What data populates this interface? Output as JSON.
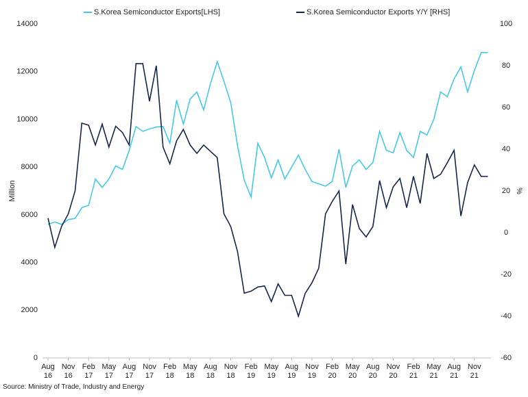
{
  "chart_data": {
    "type": "line",
    "y_label": "Million",
    "y2_label": "%",
    "source": "Source: Ministry of Trade, Industry and Energy",
    "categories": [
      "Aug 16",
      null,
      null,
      "Nov 16",
      null,
      null,
      "Feb 17",
      null,
      null,
      "May 17",
      null,
      null,
      "Aug 17",
      null,
      null,
      "Nov 17",
      null,
      null,
      "Feb 18",
      null,
      null,
      "May 18",
      null,
      null,
      "Aug 18",
      null,
      null,
      "Nov 18",
      null,
      null,
      "Feb 19",
      null,
      null,
      "May 19",
      null,
      null,
      "Aug 19",
      null,
      null,
      "Nov 19",
      null,
      null,
      "Feb 20",
      null,
      null,
      "May 20",
      null,
      null,
      "Aug 20",
      null,
      null,
      "Nov 20",
      null,
      null,
      "Feb 21",
      null,
      null,
      "May 21",
      null,
      null,
      "Aug 21",
      null,
      null,
      "Nov 21",
      null,
      null
    ],
    "series": [
      {
        "name": "S.Korea Semiconductor Exports[LHS]",
        "color": "#45c8e8",
        "axis": "y",
        "values": [
          5600,
          5700,
          5600,
          5800,
          5850,
          6300,
          6400,
          7500,
          7150,
          7500,
          8050,
          7900,
          8700,
          9700,
          9500,
          9600,
          9680,
          9700,
          9000,
          10800,
          9800,
          10850,
          11150,
          10400,
          11500,
          12420,
          11600,
          10700,
          8900,
          7450,
          6750,
          9000,
          8400,
          7550,
          8300,
          7500,
          8000,
          8500,
          7900,
          7400,
          7300,
          7200,
          7400,
          8750,
          7150,
          8050,
          8300,
          7900,
          8200,
          9500,
          8700,
          8600,
          9450,
          8700,
          8400,
          9500,
          9350,
          10000,
          11150,
          10950,
          11700,
          12200,
          11150,
          12050,
          12800,
          12800
        ]
      },
      {
        "name": "S.Korea Semiconductor Exports Y/Y [RHS]",
        "color": "#14244a",
        "axis": "y2",
        "values": [
          7,
          -7,
          3,
          9,
          20,
          52.5,
          51.5,
          42,
          52,
          41,
          51,
          48,
          42,
          81,
          81,
          63,
          80,
          41,
          33,
          44,
          49.5,
          42,
          38,
          42,
          39,
          36,
          9,
          3,
          -9,
          -29,
          -28,
          -26,
          -25.5,
          -33,
          -24.5,
          -30,
          -30,
          -40,
          -29,
          -24,
          -17,
          9,
          15,
          20,
          -15,
          13.5,
          2,
          -2,
          3,
          25,
          12,
          22,
          26,
          12,
          27,
          14,
          38,
          26,
          28,
          33.5,
          39.5,
          8,
          24,
          32.5,
          27,
          27
        ]
      }
    ],
    "ylim": [
      0,
      14000
    ],
    "yticks": [
      0,
      2000,
      4000,
      6000,
      8000,
      10000,
      12000,
      14000
    ],
    "y2lim": [
      -60,
      100
    ],
    "y2ticks": [
      -60,
      -40,
      -20,
      0,
      20,
      40,
      60,
      80,
      100
    ],
    "legend": "top"
  }
}
